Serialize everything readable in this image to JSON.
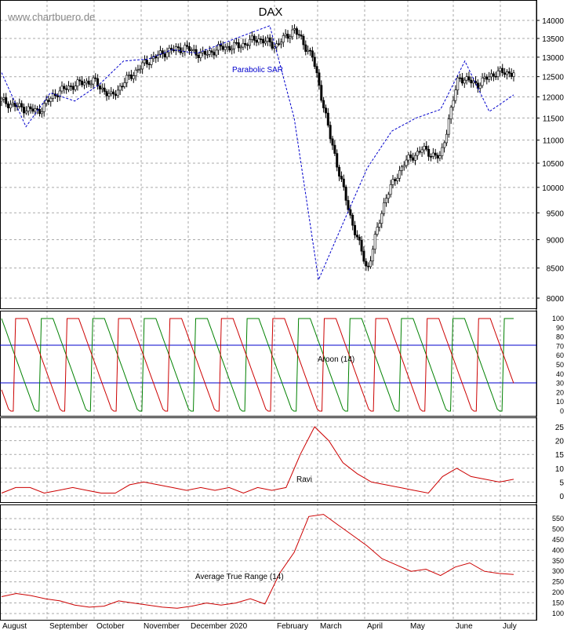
{
  "watermark": "www.chartbuero.de",
  "chart_data": [
    {
      "type": "candlestick",
      "title": "DAX",
      "y_scale": "log",
      "ylim": [
        7800,
        14400
      ],
      "y_ticks": [
        "8000",
        "8500",
        "9000",
        "9500",
        "10000",
        "10500",
        "11000",
        "11500",
        "12000",
        "12500",
        "13000",
        "13500",
        "14000"
      ],
      "x_tick_labels": [
        "August",
        "September",
        "October",
        "November",
        "December",
        "2020",
        "February",
        "March",
        "April",
        "May",
        "June",
        "July"
      ],
      "grid": true,
      "annotations": [
        "Parabolic SAR"
      ],
      "series": [
        {
          "name": "DAX",
          "style": "candlestick",
          "values": [
            {
              "date": "Aug",
              "close": 11900
            },
            {
              "date": "Aug",
              "close": 11750
            },
            {
              "date": "Aug",
              "close": 11650
            },
            {
              "date": "Sep",
              "close": 12100
            },
            {
              "date": "Sep",
              "close": 12300
            },
            {
              "date": "Sep",
              "close": 12400
            },
            {
              "date": "Oct",
              "close": 12000
            },
            {
              "date": "Oct",
              "close": 12500
            },
            {
              "date": "Oct",
              "close": 12900
            },
            {
              "date": "Nov",
              "close": 13150
            },
            {
              "date": "Nov",
              "close": 13250
            },
            {
              "date": "Dec",
              "close": 13050
            },
            {
              "date": "Dec",
              "close": 13250
            },
            {
              "date": "2020",
              "close": 13300
            },
            {
              "date": "Jan",
              "close": 13500
            },
            {
              "date": "Feb",
              "close": 13300
            },
            {
              "date": "Feb",
              "close": 13750
            },
            {
              "date": "Feb",
              "close": 13000
            },
            {
              "date": "Mar",
              "close": 11000
            },
            {
              "date": "Mar",
              "close": 9500
            },
            {
              "date": "Mar",
              "close": 8450
            },
            {
              "date": "Apr",
              "close": 9800
            },
            {
              "date": "Apr",
              "close": 10500
            },
            {
              "date": "May",
              "close": 10800
            },
            {
              "date": "May",
              "close": 10600
            },
            {
              "date": "Jun",
              "close": 12500
            },
            {
              "date": "Jun",
              "close": 12300
            },
            {
              "date": "Jul",
              "close": 12600
            },
            {
              "date": "Jul",
              "close": 12600
            }
          ]
        },
        {
          "name": "Parabolic SAR",
          "style": "dashed",
          "values": [
            12600,
            11300,
            12100,
            11900,
            12300,
            12900,
            12950,
            13200,
            13100,
            13350,
            13600,
            13850,
            11500,
            8300,
            9300,
            10400,
            11200,
            11500,
            11700,
            12900,
            11650,
            12050
          ]
        }
      ]
    },
    {
      "type": "line",
      "ylim": [
        0,
        100
      ],
      "y_ticks": [
        "0",
        "10",
        "20",
        "30",
        "40",
        "50",
        "60",
        "70",
        "80",
        "90",
        "100"
      ],
      "horizontal_lines": [
        30,
        70
      ],
      "annotations": [
        "Aroon (14)"
      ],
      "series": [
        {
          "name": "Aroon Up",
          "color": "#008000"
        },
        {
          "name": "Aroon Down",
          "color": "#cc0000"
        }
      ]
    },
    {
      "type": "line",
      "ylim": [
        -3,
        27
      ],
      "y_ticks": [
        "0",
        "5",
        "10",
        "15",
        "20",
        "25"
      ],
      "annotations": [
        "Ravi"
      ],
      "series": [
        {
          "name": "Ravi",
          "color": "#cc0000",
          "values": [
            1,
            3,
            3,
            1,
            2,
            3,
            2,
            1,
            1,
            4,
            5,
            4,
            3,
            2,
            3,
            2,
            3,
            1,
            3,
            2,
            3,
            15,
            25,
            20,
            12,
            8,
            5,
            4,
            3,
            2,
            1,
            7,
            10,
            7,
            6,
            5,
            6
          ]
        }
      ]
    },
    {
      "type": "line",
      "ylim": [
        80,
        600
      ],
      "y_ticks": [
        "100",
        "150",
        "200",
        "250",
        "300",
        "350",
        "400",
        "450",
        "500",
        "550"
      ],
      "annotations": [
        "Average True Range (14)"
      ],
      "series": [
        {
          "name": "Average True Range (14)",
          "color": "#cc0000",
          "values": [
            180,
            195,
            185,
            170,
            160,
            140,
            130,
            135,
            160,
            150,
            140,
            130,
            125,
            135,
            150,
            140,
            150,
            170,
            145,
            290,
            390,
            560,
            570,
            520,
            470,
            420,
            360,
            330,
            300,
            310,
            280,
            320,
            340,
            300,
            290,
            285
          ]
        }
      ]
    }
  ]
}
